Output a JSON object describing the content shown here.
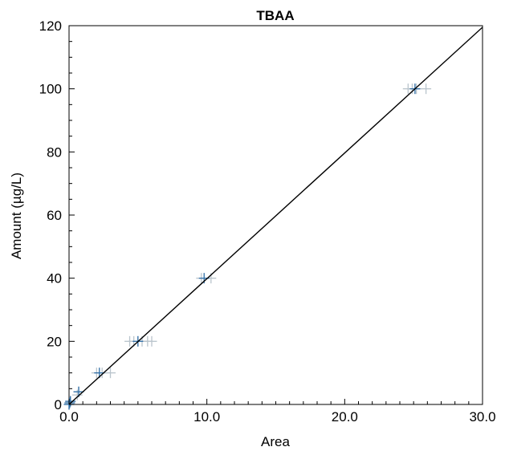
{
  "chart_data": {
    "type": "scatter",
    "title": "TBAA",
    "xlabel": "Area",
    "ylabel": "Amount (µg/L)",
    "xlim": [
      0,
      30
    ],
    "ylim": [
      0,
      120
    ],
    "x_ticks": [
      "0.0",
      "10.0",
      "20.0",
      "30.0"
    ],
    "y_ticks": [
      "0",
      "20",
      "40",
      "60",
      "80",
      "100",
      "120"
    ],
    "grid": false,
    "legend": "none",
    "series": [
      {
        "marker": "plus",
        "color": "#b9c4cc",
        "points": [
          [
            24.6,
            100
          ],
          [
            24.9,
            100
          ],
          [
            25.2,
            100
          ],
          [
            25.9,
            100
          ],
          [
            9.6,
            40
          ],
          [
            10.3,
            40
          ],
          [
            4.4,
            20
          ],
          [
            4.7,
            20
          ],
          [
            5.0,
            20
          ],
          [
            5.3,
            20
          ],
          [
            5.7,
            20
          ],
          [
            6.0,
            20
          ],
          [
            2.0,
            10
          ],
          [
            2.4,
            10
          ],
          [
            3.0,
            10
          ],
          [
            0.7,
            4
          ],
          [
            0.6,
            3
          ],
          [
            0.1,
            1
          ],
          [
            0.05,
            0.5
          ],
          [
            0.0,
            0
          ]
        ]
      },
      {
        "marker": "plus",
        "color": "#2f6fa8",
        "points": [
          [
            25.1,
            100
          ],
          [
            9.8,
            40
          ],
          [
            5.0,
            20
          ],
          [
            2.2,
            10
          ],
          [
            0.7,
            4
          ],
          [
            0.1,
            1
          ],
          [
            0.05,
            0.5
          ],
          [
            0.0,
            0
          ]
        ]
      }
    ],
    "fit_line": {
      "x": [
        0,
        30
      ],
      "y": [
        0,
        119.5
      ],
      "color": "#000000"
    }
  }
}
